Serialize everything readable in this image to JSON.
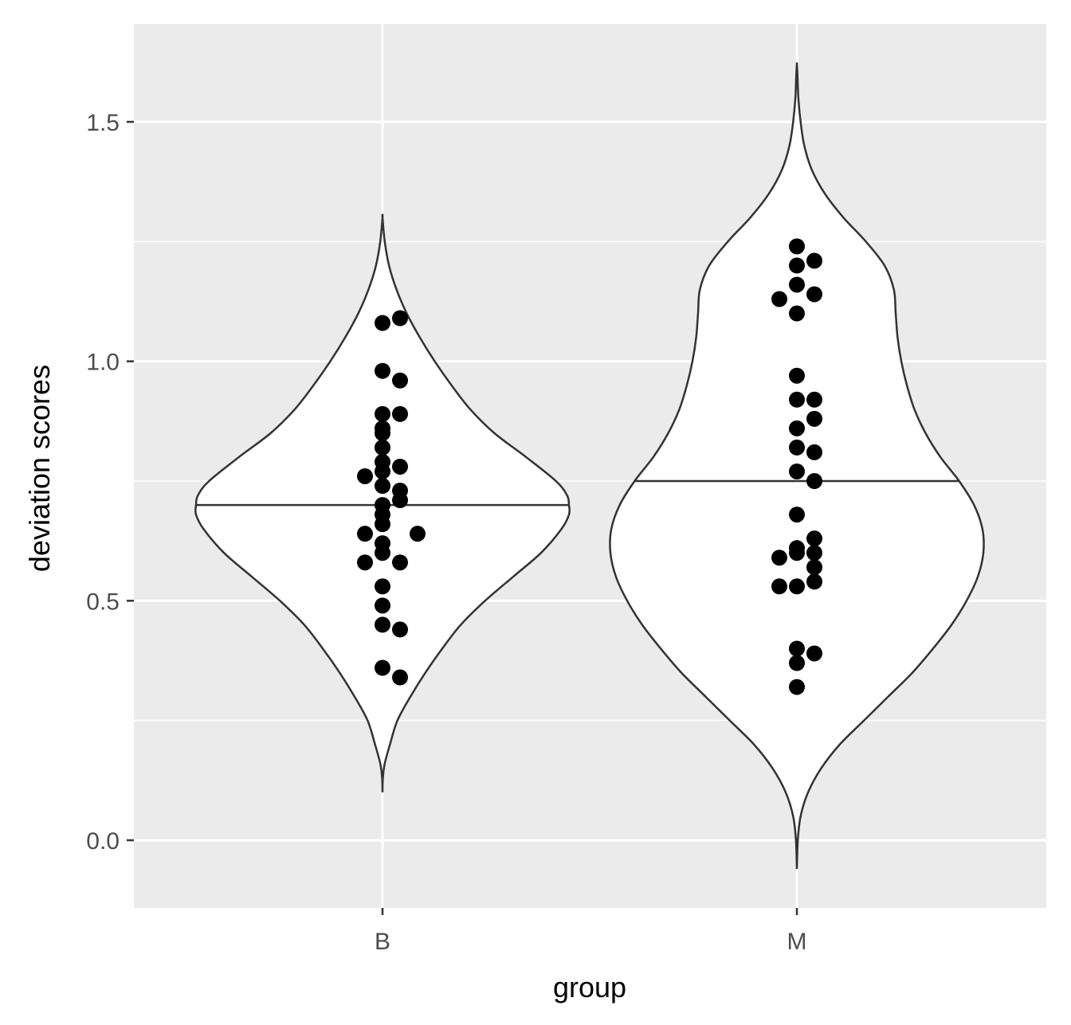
{
  "chart_data": {
    "type": "violin",
    "xlabel": "group",
    "ylabel": "deviation scores",
    "categories": [
      "B",
      "M"
    ],
    "ylim": [
      -0.12,
      1.7
    ],
    "yticks": [
      0.0,
      0.5,
      1.0,
      1.5
    ],
    "ytick_labels": [
      "0.0",
      "0.5",
      "1.0",
      "1.5"
    ],
    "grid": true,
    "panel_background": "#ebebeb",
    "gridline_color": "#ffffff",
    "violin_fill": "#ffffff",
    "violin_outline": "#333333",
    "point_color": "#000000",
    "violins": [
      {
        "group": "B",
        "median_line": 0.7,
        "profile": [
          [
            0.1,
            0.0
          ],
          [
            0.13,
            0.002
          ],
          [
            0.16,
            0.012
          ],
          [
            0.2,
            0.04
          ],
          [
            0.25,
            0.08
          ],
          [
            0.3,
            0.15
          ],
          [
            0.35,
            0.23
          ],
          [
            0.4,
            0.32
          ],
          [
            0.45,
            0.42
          ],
          [
            0.5,
            0.55
          ],
          [
            0.55,
            0.7
          ],
          [
            0.6,
            0.85
          ],
          [
            0.65,
            0.96
          ],
          [
            0.68,
            1.0
          ],
          [
            0.7,
            1.0
          ],
          [
            0.72,
            0.99
          ],
          [
            0.75,
            0.93
          ],
          [
            0.8,
            0.77
          ],
          [
            0.85,
            0.6
          ],
          [
            0.9,
            0.47
          ],
          [
            0.95,
            0.37
          ],
          [
            1.0,
            0.28
          ],
          [
            1.05,
            0.2
          ],
          [
            1.1,
            0.13
          ],
          [
            1.15,
            0.075
          ],
          [
            1.2,
            0.035
          ],
          [
            1.25,
            0.012
          ],
          [
            1.3,
            0.0
          ]
        ],
        "points": [
          [
            0.34,
            1
          ],
          [
            0.36,
            0
          ],
          [
            0.44,
            1
          ],
          [
            0.45,
            0
          ],
          [
            0.49,
            0
          ],
          [
            0.53,
            0
          ],
          [
            0.58,
            -1
          ],
          [
            0.58,
            1
          ],
          [
            0.6,
            0
          ],
          [
            0.62,
            0
          ],
          [
            0.64,
            -1
          ],
          [
            0.64,
            2
          ],
          [
            0.66,
            0
          ],
          [
            0.68,
            0
          ],
          [
            0.7,
            0
          ],
          [
            0.71,
            1
          ],
          [
            0.73,
            1
          ],
          [
            0.74,
            0
          ],
          [
            0.76,
            -1
          ],
          [
            0.77,
            0
          ],
          [
            0.78,
            1
          ],
          [
            0.79,
            0
          ],
          [
            0.82,
            0
          ],
          [
            0.85,
            0
          ],
          [
            0.86,
            0
          ],
          [
            0.89,
            0
          ],
          [
            0.89,
            1
          ],
          [
            0.96,
            1
          ],
          [
            0.98,
            0
          ],
          [
            1.08,
            0
          ],
          [
            1.09,
            1
          ]
        ]
      },
      {
        "group": "M",
        "median_line": 0.75,
        "profile": [
          [
            -0.06,
            0.0
          ],
          [
            0.0,
            0.005
          ],
          [
            0.05,
            0.02
          ],
          [
            0.1,
            0.06
          ],
          [
            0.15,
            0.13
          ],
          [
            0.2,
            0.23
          ],
          [
            0.25,
            0.36
          ],
          [
            0.3,
            0.49
          ],
          [
            0.35,
            0.62
          ],
          [
            0.4,
            0.73
          ],
          [
            0.45,
            0.83
          ],
          [
            0.5,
            0.91
          ],
          [
            0.55,
            0.97
          ],
          [
            0.6,
            1.0
          ],
          [
            0.65,
            0.995
          ],
          [
            0.7,
            0.95
          ],
          [
            0.75,
            0.87
          ],
          [
            0.8,
            0.77
          ],
          [
            0.85,
            0.69
          ],
          [
            0.9,
            0.63
          ],
          [
            0.95,
            0.59
          ],
          [
            1.0,
            0.56
          ],
          [
            1.05,
            0.54
          ],
          [
            1.1,
            0.53
          ],
          [
            1.15,
            0.52
          ],
          [
            1.2,
            0.47
          ],
          [
            1.25,
            0.37
          ],
          [
            1.3,
            0.25
          ],
          [
            1.35,
            0.15
          ],
          [
            1.4,
            0.08
          ],
          [
            1.45,
            0.04
          ],
          [
            1.5,
            0.02
          ],
          [
            1.55,
            0.008
          ],
          [
            1.6,
            0.003
          ],
          [
            1.62,
            0.0
          ]
        ],
        "points": [
          [
            0.32,
            0
          ],
          [
            0.37,
            0
          ],
          [
            0.39,
            1
          ],
          [
            0.4,
            0
          ],
          [
            0.53,
            -1
          ],
          [
            0.53,
            0
          ],
          [
            0.54,
            1
          ],
          [
            0.57,
            1
          ],
          [
            0.59,
            -1
          ],
          [
            0.6,
            0
          ],
          [
            0.6,
            1
          ],
          [
            0.61,
            0
          ],
          [
            0.63,
            1
          ],
          [
            0.68,
            0
          ],
          [
            0.75,
            1
          ],
          [
            0.77,
            0
          ],
          [
            0.81,
            1
          ],
          [
            0.82,
            0
          ],
          [
            0.86,
            0
          ],
          [
            0.88,
            1
          ],
          [
            0.92,
            0
          ],
          [
            0.92,
            1
          ],
          [
            0.97,
            0
          ],
          [
            1.1,
            0
          ],
          [
            1.13,
            -1
          ],
          [
            1.14,
            1
          ],
          [
            1.16,
            0
          ],
          [
            1.2,
            0
          ],
          [
            1.21,
            1
          ],
          [
            1.24,
            0
          ]
        ]
      }
    ]
  }
}
